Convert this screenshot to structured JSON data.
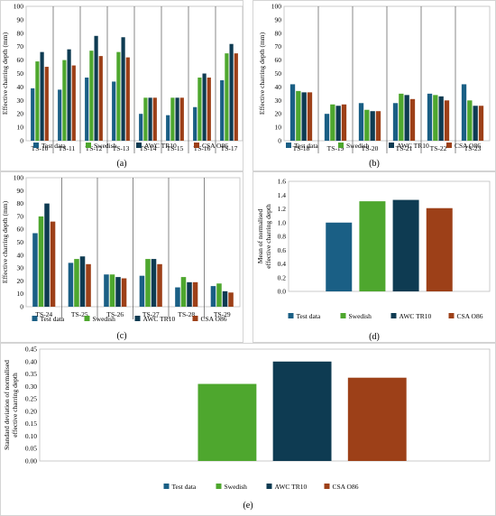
{
  "colors": {
    "test": "#1a5f85",
    "swedish": "#4ea72e",
    "awc": "#0e3b52",
    "csa": "#9d4018"
  },
  "legend": [
    "Test data",
    "Swedish",
    "AWC TR10",
    "CSA O86"
  ],
  "chart_data": [
    {
      "panel_label": "(a)",
      "type": "bar",
      "ylabel": "Effective charring depth (mm)",
      "ylim": [
        0,
        100
      ],
      "yticks": [
        "0",
        "10",
        "20",
        "30",
        "40",
        "50",
        "60",
        "70",
        "80",
        "90",
        "100"
      ],
      "categories": [
        "TS-10",
        "TS-11",
        "TS-12",
        "TS-13",
        "TS-14",
        "TS-15",
        "TS-16",
        "TS-17"
      ],
      "series": [
        {
          "name": "Test data",
          "values": [
            39,
            38,
            47,
            44,
            20,
            19,
            25,
            45
          ]
        },
        {
          "name": "Swedish",
          "values": [
            59,
            60,
            67,
            66,
            32,
            32,
            47,
            65
          ]
        },
        {
          "name": "AWC TR10",
          "values": [
            66,
            68,
            78,
            77,
            32,
            32,
            50,
            72
          ]
        },
        {
          "name": "CSA O86",
          "values": [
            55,
            56,
            63,
            62,
            32,
            32,
            47,
            65
          ]
        }
      ],
      "grid": false,
      "category_separators": true,
      "legend_position": "bottom"
    },
    {
      "panel_label": "(b)",
      "type": "bar",
      "ylabel": "Effective charring depth (mm)",
      "ylim": [
        0,
        100
      ],
      "yticks": [
        "0",
        "10",
        "20",
        "30",
        "40",
        "50",
        "60",
        "70",
        "80",
        "90",
        "100"
      ],
      "categories": [
        "TS-18",
        "TS-19",
        "TS-20",
        "TS-21",
        "TS-22",
        "TS-23"
      ],
      "series": [
        {
          "name": "Test data",
          "values": [
            42,
            20,
            28,
            28,
            35,
            42
          ]
        },
        {
          "name": "Swedish",
          "values": [
            37,
            27,
            23,
            35,
            34,
            30
          ]
        },
        {
          "name": "AWC TR10",
          "values": [
            36,
            26,
            22,
            34,
            33,
            26
          ]
        },
        {
          "name": "CSA O86",
          "values": [
            36,
            27,
            22,
            31,
            30,
            26
          ]
        }
      ],
      "grid": false,
      "category_separators": true,
      "legend_position": "bottom"
    },
    {
      "panel_label": "(c)",
      "type": "bar",
      "ylabel": "Effective charring depth (mm)",
      "ylim": [
        0,
        100
      ],
      "yticks": [
        "0",
        "10",
        "20",
        "30",
        "40",
        "50",
        "60",
        "70",
        "80",
        "90",
        "100"
      ],
      "categories": [
        "TS-24",
        "TS-25",
        "TS-26",
        "TS-27",
        "TS-28",
        "TS-29"
      ],
      "series": [
        {
          "name": "Test data",
          "values": [
            57,
            34,
            25,
            24,
            15,
            16
          ]
        },
        {
          "name": "Swedish",
          "values": [
            70,
            37,
            25,
            37,
            23,
            18
          ]
        },
        {
          "name": "AWC TR10",
          "values": [
            80,
            39,
            23,
            37,
            19,
            12
          ]
        },
        {
          "name": "CSA O86",
          "values": [
            66,
            33,
            22,
            33,
            19,
            11
          ]
        }
      ],
      "grid": false,
      "category_separators": true,
      "legend_position": "bottom"
    },
    {
      "panel_label": "(d)",
      "type": "bar",
      "ylabel": "Mean of normalised effective charring depth",
      "ylim": [
        0,
        1.6
      ],
      "yticks": [
        "0.0",
        "0.2",
        "0.4",
        "0.6",
        "0.8",
        "1.0",
        "1.2",
        "1.4",
        "1.6"
      ],
      "categories": [
        "Test data",
        "Swedish",
        "AWC TR10",
        "CSA O86"
      ],
      "values": [
        1.0,
        1.31,
        1.33,
        1.21
      ],
      "grid": false,
      "legend_position": "bottom"
    },
    {
      "panel_label": "(e)",
      "type": "bar",
      "ylabel": "Standard deviation of normalised effective charring depth",
      "ylim": [
        0,
        0.45
      ],
      "yticks": [
        "0.00",
        "0.05",
        "0.10",
        "0.15",
        "0.20",
        "0.25",
        "0.30",
        "0.35",
        "0.40",
        "0.45"
      ],
      "categories": [
        "Test data",
        "Swedish",
        "AWC TR10",
        "CSA O86"
      ],
      "values": [
        0.0,
        0.31,
        0.4,
        0.335
      ],
      "grid": false,
      "legend_position": "bottom"
    }
  ]
}
